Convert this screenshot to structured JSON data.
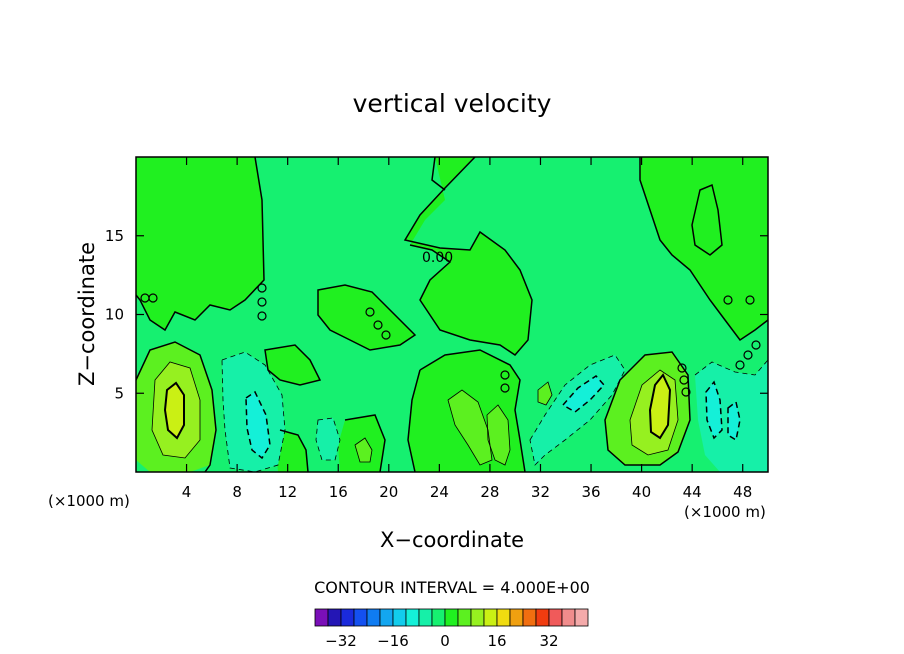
{
  "chart_data": {
    "type": "heatmap",
    "title": "vertical velocity",
    "xlabel": "X−coordinate",
    "ylabel": "Z−coordinate",
    "x_unit_left": "(×1000 m)",
    "x_unit_right": "(×1000 m)",
    "xlim": [
      0,
      50
    ],
    "ylim": [
      0,
      20
    ],
    "x_ticks": [
      4,
      8,
      12,
      16,
      20,
      24,
      28,
      32,
      36,
      40,
      44,
      48
    ],
    "y_ticks": [
      5,
      10,
      15
    ],
    "contour_interval_text": "CONTOUR INTERVAL = 4.000E+00",
    "contour_label": "0.00",
    "features": [
      {
        "kind": "max",
        "x": 3.0,
        "z": 4.0,
        "value": 8
      },
      {
        "kind": "min",
        "x": 9.5,
        "z": 3.0,
        "value": -8
      },
      {
        "kind": "max",
        "x": 18.0,
        "z": 1.5,
        "value": 4
      },
      {
        "kind": "max",
        "x": 26.5,
        "z": 3.5,
        "value": 4
      },
      {
        "kind": "min",
        "x": 34.5,
        "z": 5.0,
        "value": -8
      },
      {
        "kind": "max",
        "x": 41.0,
        "z": 4.5,
        "value": 8
      },
      {
        "kind": "min",
        "x": 46.0,
        "z": 3.5,
        "value": -8
      }
    ],
    "colorbar": {
      "levels": [
        -36,
        -32,
        -28,
        -24,
        -20,
        -16,
        -12,
        -8,
        -4,
        0,
        4,
        8,
        12,
        16,
        20,
        24,
        28,
        32,
        36
      ],
      "colors": [
        "#7a0fb8",
        "#2416b5",
        "#1a2adb",
        "#1450f0",
        "#0f7cf2",
        "#13a6f0",
        "#12ccec",
        "#14f0d8",
        "#16f0a8",
        "#16f070",
        "#20f020",
        "#5cf020",
        "#96f020",
        "#caf014",
        "#f0dc10",
        "#f0a010",
        "#f06e10",
        "#f03c10",
        "#f05a5a",
        "#f08c8c",
        "#f4aaaa"
      ],
      "tick_labels": [
        "−32",
        "−16",
        "0",
        "16",
        "32"
      ],
      "tick_values": [
        -32,
        -16,
        0,
        16,
        32
      ]
    }
  }
}
